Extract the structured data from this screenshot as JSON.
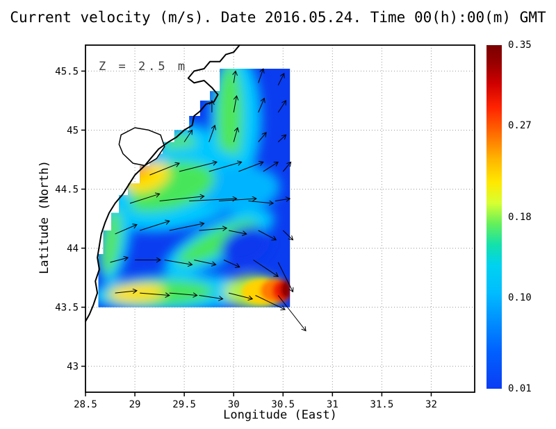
{
  "chart_data": {
    "type": "heatmap",
    "title": "Current velocity (m/s). Date 2016.05.24. Time 00(h):00(m) GMT",
    "annotation": "Z = 2.5 m",
    "xlabel": "Longitude (East)",
    "ylabel": "Latitude (North)",
    "xlim": [
      28.5,
      32.44
    ],
    "ylim": [
      42.78,
      45.72
    ],
    "xticks": [
      28.5,
      29,
      29.5,
      30,
      30.5,
      31,
      31.5,
      32
    ],
    "yticks": [
      43,
      43.5,
      44,
      44.5,
      45,
      45.5
    ],
    "grid": "dotted",
    "grid_color": "#999999",
    "field_base_color": "#0a3cf0",
    "colorbar": {
      "vmin": 0.01,
      "vmax": 0.35,
      "ticks": [
        0.35,
        0.27,
        0.18,
        0.1,
        0.01
      ],
      "tick_labels": [
        "0.35",
        "0.27",
        "0.18",
        "0.10",
        "0.01"
      ],
      "gradient": [
        {
          "offset": 0,
          "color": "#7a0000"
        },
        {
          "offset": 5,
          "color": "#960000"
        },
        {
          "offset": 11,
          "color": "#cd0000"
        },
        {
          "offset": 18,
          "color": "#ff2200"
        },
        {
          "offset": 26,
          "color": "#ff6e00"
        },
        {
          "offset": 33,
          "color": "#ffb400"
        },
        {
          "offset": 40,
          "color": "#ffe900"
        },
        {
          "offset": 46,
          "color": "#d7ff32"
        },
        {
          "offset": 52,
          "color": "#64f05a"
        },
        {
          "offset": 58,
          "color": "#14e1aa"
        },
        {
          "offset": 64,
          "color": "#00d2f0"
        },
        {
          "offset": 72,
          "color": "#00bdff"
        },
        {
          "offset": 80,
          "color": "#0091ff"
        },
        {
          "offset": 89,
          "color": "#0061ff"
        },
        {
          "offset": 100,
          "color": "#0a3cf4"
        }
      ]
    },
    "coastline": [
      [
        30.06,
        45.72
      ],
      [
        30.0,
        45.66
      ],
      [
        29.92,
        45.64
      ],
      [
        29.86,
        45.58
      ],
      [
        29.76,
        45.58
      ],
      [
        29.7,
        45.52
      ],
      [
        29.6,
        45.5
      ],
      [
        29.54,
        45.44
      ],
      [
        29.6,
        45.4
      ],
      [
        29.7,
        45.42
      ],
      [
        29.78,
        45.36
      ],
      [
        29.84,
        45.3
      ],
      [
        29.8,
        45.24
      ],
      [
        29.72,
        45.22
      ],
      [
        29.66,
        45.16
      ],
      [
        29.6,
        45.12
      ],
      [
        29.58,
        45.04
      ],
      [
        29.5,
        45.0
      ],
      [
        29.42,
        44.94
      ],
      [
        29.34,
        44.9
      ],
      [
        29.24,
        44.84
      ],
      [
        29.16,
        44.76
      ],
      [
        29.1,
        44.7
      ],
      [
        29.0,
        44.62
      ],
      [
        28.94,
        44.54
      ],
      [
        28.88,
        44.46
      ],
      [
        28.8,
        44.38
      ],
      [
        28.74,
        44.3
      ],
      [
        28.7,
        44.22
      ],
      [
        28.66,
        44.12
      ],
      [
        28.64,
        44.02
      ],
      [
        28.62,
        43.92
      ],
      [
        28.64,
        43.82
      ],
      [
        28.6,
        43.72
      ],
      [
        28.62,
        43.62
      ],
      [
        28.58,
        43.52
      ],
      [
        28.54,
        43.44
      ],
      [
        28.5,
        43.38
      ]
    ],
    "lagoon": [
      [
        28.86,
        44.96
      ],
      [
        29.0,
        45.02
      ],
      [
        29.14,
        45.0
      ],
      [
        29.26,
        44.96
      ],
      [
        29.3,
        44.86
      ],
      [
        29.22,
        44.76
      ],
      [
        29.1,
        44.7
      ],
      [
        28.98,
        44.72
      ],
      [
        28.88,
        44.8
      ],
      [
        28.84,
        44.88
      ]
    ],
    "data_region": [
      [
        28.63,
        43.5
      ],
      [
        30.57,
        43.5
      ],
      [
        30.57,
        45.52
      ],
      [
        29.86,
        45.52
      ],
      [
        29.86,
        45.33
      ],
      [
        29.76,
        45.33
      ],
      [
        29.76,
        45.25
      ],
      [
        29.66,
        45.25
      ],
      [
        29.66,
        45.12
      ],
      [
        29.55,
        45.12
      ],
      [
        29.55,
        45.0
      ],
      [
        29.4,
        45.0
      ],
      [
        29.4,
        44.9
      ],
      [
        29.28,
        44.9
      ],
      [
        29.28,
        44.8
      ],
      [
        29.15,
        44.8
      ],
      [
        29.15,
        44.7
      ],
      [
        29.05,
        44.7
      ],
      [
        29.05,
        44.55
      ],
      [
        28.93,
        44.55
      ],
      [
        28.93,
        44.45
      ],
      [
        28.84,
        44.45
      ],
      [
        28.84,
        44.3
      ],
      [
        28.76,
        44.3
      ],
      [
        28.76,
        44.15
      ],
      [
        28.68,
        44.15
      ],
      [
        28.68,
        43.95
      ],
      [
        28.63,
        43.95
      ]
    ],
    "field_blobs": [
      {
        "x": 30.02,
        "y": 45.1,
        "rx": 0.26,
        "ry": 0.55,
        "rot": 0,
        "color": "#00c8ff",
        "soft": true
      },
      {
        "x": 29.96,
        "y": 45.12,
        "rx": 0.13,
        "ry": 0.45,
        "rot": 0,
        "color": "#50e65a",
        "soft": true
      },
      {
        "x": 29.5,
        "y": 44.85,
        "rx": 0.3,
        "ry": 0.2,
        "rot": -20,
        "color": "#00c8ff",
        "soft": true
      },
      {
        "x": 29.45,
        "y": 44.85,
        "rx": 0.17,
        "ry": 0.11,
        "rot": -20,
        "color": "#55e65a",
        "soft": true
      },
      {
        "x": 29.4,
        "y": 44.5,
        "rx": 0.78,
        "ry": 0.34,
        "rot": -12,
        "color": "#00c8ff",
        "soft": true
      },
      {
        "x": 30.05,
        "y": 44.5,
        "rx": 0.42,
        "ry": 0.2,
        "rot": -5,
        "color": "#00b4ff",
        "soft": true
      },
      {
        "x": 29.3,
        "y": 44.52,
        "rx": 0.52,
        "ry": 0.2,
        "rot": -12,
        "color": "#46e65a",
        "soft": true
      },
      {
        "x": 29.12,
        "y": 44.6,
        "rx": 0.24,
        "ry": 0.12,
        "rot": -18,
        "color": "#ffe100",
        "soft": true
      },
      {
        "x": 29.04,
        "y": 44.66,
        "rx": 0.11,
        "ry": 0.06,
        "rot": -18,
        "color": "#ffa000",
        "soft": true
      },
      {
        "x": 28.8,
        "y": 44.12,
        "rx": 0.16,
        "ry": 0.42,
        "rot": 8,
        "color": "#00c8ff",
        "soft": true
      },
      {
        "x": 28.76,
        "y": 44.05,
        "rx": 0.09,
        "ry": 0.28,
        "rot": 8,
        "color": "#55e65a",
        "soft": true
      },
      {
        "x": 29.85,
        "y": 44.05,
        "rx": 0.62,
        "ry": 0.17,
        "rot": -27,
        "color": "#00c8ff",
        "soft": true
      },
      {
        "x": 29.83,
        "y": 44.05,
        "rx": 0.45,
        "ry": 0.1,
        "rot": -27,
        "color": "#46e65a",
        "soft": true
      },
      {
        "x": 30.12,
        "y": 44.02,
        "rx": 0.26,
        "ry": 0.15,
        "rot": -25,
        "color": "#0838ee",
        "soft": true
      },
      {
        "x": 29.4,
        "y": 43.62,
        "rx": 0.85,
        "ry": 0.16,
        "rot": -2,
        "color": "#00c8ff",
        "soft": true
      },
      {
        "x": 29.25,
        "y": 43.62,
        "rx": 0.55,
        "ry": 0.11,
        "rot": -2,
        "color": "#46e65a",
        "soft": true
      },
      {
        "x": 29.02,
        "y": 43.62,
        "rx": 0.28,
        "ry": 0.08,
        "rot": -4,
        "color": "#ffe100",
        "soft": true
      },
      {
        "x": 30.2,
        "y": 43.63,
        "rx": 0.3,
        "ry": 0.14,
        "rot": 0,
        "color": "#b4f046",
        "soft": true
      },
      {
        "x": 30.3,
        "y": 43.63,
        "rx": 0.22,
        "ry": 0.11,
        "rot": 0,
        "color": "#ffd200",
        "soft": false
      },
      {
        "x": 30.42,
        "y": 43.64,
        "rx": 0.15,
        "ry": 0.1,
        "rot": 0,
        "color": "#ff7800",
        "soft": false
      },
      {
        "x": 30.49,
        "y": 43.64,
        "rx": 0.1,
        "ry": 0.09,
        "rot": 0,
        "color": "#f01e00",
        "soft": false
      },
      {
        "x": 30.53,
        "y": 43.65,
        "rx": 0.055,
        "ry": 0.075,
        "rot": 0,
        "color": "#8c0000",
        "soft": false
      }
    ],
    "arrows": [
      [
        30.0,
        45.4,
        0.02,
        0.1
      ],
      [
        30.25,
        45.4,
        0.05,
        0.12
      ],
      [
        30.45,
        45.38,
        0.06,
        0.1
      ],
      [
        29.78,
        45.15,
        0.0,
        0.1
      ],
      [
        30.0,
        45.15,
        0.03,
        0.14
      ],
      [
        30.25,
        45.15,
        0.06,
        0.12
      ],
      [
        30.45,
        45.15,
        0.08,
        0.1
      ],
      [
        29.5,
        44.9,
        0.08,
        0.1
      ],
      [
        29.75,
        44.9,
        0.06,
        0.14
      ],
      [
        30.0,
        44.9,
        0.04,
        0.12
      ],
      [
        30.25,
        44.9,
        0.08,
        0.08
      ],
      [
        30.45,
        44.9,
        0.08,
        0.06
      ],
      [
        29.15,
        44.62,
        0.3,
        0.1
      ],
      [
        29.45,
        44.65,
        0.38,
        0.08
      ],
      [
        29.75,
        44.65,
        0.33,
        0.08
      ],
      [
        30.05,
        44.65,
        0.25,
        0.08
      ],
      [
        30.3,
        44.65,
        0.15,
        0.08
      ],
      [
        30.5,
        44.65,
        0.08,
        0.08
      ],
      [
        28.95,
        44.38,
        0.3,
        0.08
      ],
      [
        29.25,
        44.4,
        0.45,
        0.04
      ],
      [
        29.55,
        44.4,
        0.48,
        0.02
      ],
      [
        29.85,
        44.4,
        0.38,
        0.02
      ],
      [
        30.15,
        44.4,
        0.25,
        -0.02
      ],
      [
        30.42,
        44.4,
        0.15,
        0.02
      ],
      [
        28.8,
        44.12,
        0.22,
        0.08
      ],
      [
        29.05,
        44.15,
        0.3,
        0.08
      ],
      [
        29.35,
        44.15,
        0.35,
        0.06
      ],
      [
        29.65,
        44.15,
        0.28,
        0.02
      ],
      [
        29.95,
        44.15,
        0.18,
        -0.03
      ],
      [
        30.25,
        44.15,
        0.18,
        -0.08
      ],
      [
        30.5,
        44.15,
        0.1,
        -0.08
      ],
      [
        28.75,
        43.88,
        0.18,
        0.04
      ],
      [
        29.0,
        43.9,
        0.26,
        0.0
      ],
      [
        29.3,
        43.9,
        0.28,
        -0.04
      ],
      [
        29.6,
        43.9,
        0.22,
        -0.04
      ],
      [
        29.9,
        43.9,
        0.16,
        -0.06
      ],
      [
        30.2,
        43.9,
        0.25,
        -0.14
      ],
      [
        30.45,
        43.88,
        0.15,
        -0.25
      ],
      [
        28.8,
        43.62,
        0.22,
        0.02
      ],
      [
        29.05,
        43.62,
        0.3,
        -0.02
      ],
      [
        29.35,
        43.62,
        0.28,
        -0.02
      ],
      [
        29.65,
        43.6,
        0.24,
        -0.03
      ],
      [
        29.95,
        43.62,
        0.24,
        -0.05
      ],
      [
        30.22,
        43.6,
        0.3,
        -0.12
      ],
      [
        30.45,
        43.6,
        0.28,
        -0.3
      ]
    ]
  }
}
